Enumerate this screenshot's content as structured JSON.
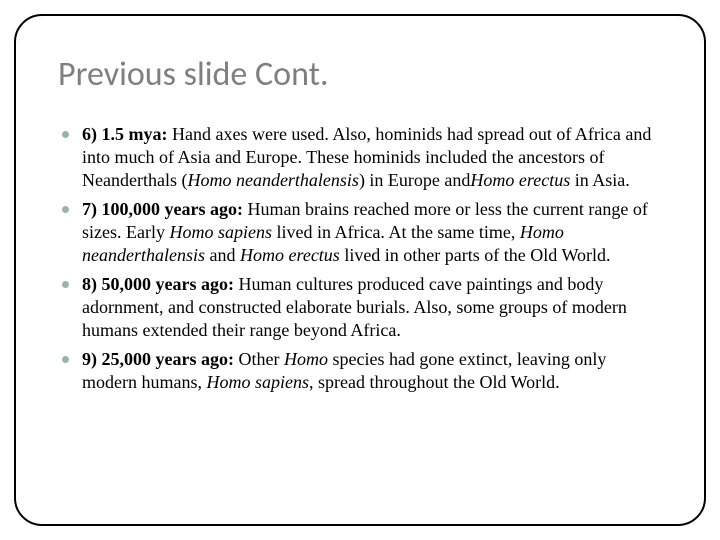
{
  "slide": {
    "title": "Previous slide Cont.",
    "border_color": "#000000",
    "border_radius": 28,
    "title_color": "#7f7f7f",
    "title_fontsize": 34,
    "bullet_color": "#9ab3ad",
    "body_fontsize": 18,
    "body_color": "#000000",
    "background_color": "#ffffff",
    "bullets": [
      {
        "lead": "6) 1.5 mya:",
        "seg1": " Hand axes were used. Also, hominids had spread out of Africa and into much of Asia and Europe. These hominids included the ancestors of Neanderthals (",
        "it1": "Homo neanderthalensis",
        "seg2": ") in Europe and",
        "it2": "Homo erectus",
        "seg3": " in Asia."
      },
      {
        "lead": "7) 100,000 years ago:",
        "seg1": " Human brains reached more or less the current range of sizes. Early ",
        "it1": "Homo sapiens",
        "seg2": " lived in Africa. At the same time, ",
        "it2": "Homo neanderthalensis",
        "seg3": " and ",
        "it3": "Homo erectus",
        "seg4": " lived in other parts of the Old World."
      },
      {
        "lead": "8) 50,000 years ago:",
        "seg1": "  Human cultures produced cave paintings and body adornment, and constructed elaborate burials. Also, some groups of modern humans extended their range beyond Africa."
      },
      {
        "lead": "9) 25,000 years ago:",
        "seg1": " Other ",
        "it1": "Homo",
        "seg2": " species had gone extinct, leaving only modern humans, ",
        "it2": "Homo sapiens",
        "seg3": ", spread throughout the Old World."
      }
    ]
  }
}
